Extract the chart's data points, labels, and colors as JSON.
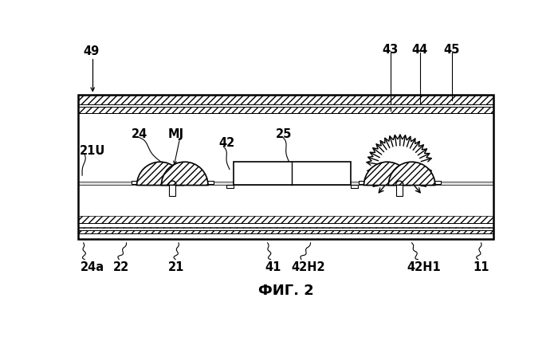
{
  "title": "ФИГ. 2",
  "bg_color": "#ffffff",
  "label_49": "49",
  "label_43": "43",
  "label_44": "44",
  "label_45": "45",
  "label_24": "24",
  "label_MJ": "MJ",
  "label_21U": "21U",
  "label_42": "42",
  "label_25": "25",
  "label_24a": "24a",
  "label_22": "22",
  "label_21": "21",
  "label_41": "41",
  "label_42H2": "42H2",
  "label_42H1": "42H1",
  "label_11": "11"
}
